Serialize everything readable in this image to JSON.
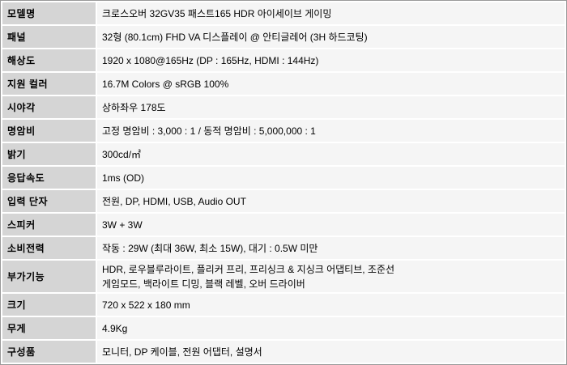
{
  "colors": {
    "label_cell_bg": "#d5d5d5",
    "value_cell_bg": "#f5f5f5",
    "table_border": "#999999",
    "cell_gap": "#ffffff",
    "text": "#000000"
  },
  "spec_table": {
    "rows": [
      {
        "label": "모델명",
        "value": "크로스오버 32GV35 패스트165 HDR 아이세이브 게이밍"
      },
      {
        "label": "패널",
        "value": "32형 (80.1cm) FHD VA 디스플레이 @ 안티글레어 (3H 하드코팅)"
      },
      {
        "label": "해상도",
        "value": "1920 x 1080@165Hz (DP : 165Hz, HDMI : 144Hz)"
      },
      {
        "label": "지원 컬러",
        "value": "16.7M Colors @ sRGB 100%"
      },
      {
        "label": "시야각",
        "value": "상하좌우 178도"
      },
      {
        "label": "명암비",
        "value": "고정 명암비 : 3,000 : 1 / 동적 명암비 : 5,000,000 : 1"
      },
      {
        "label": "밝기",
        "value": "300cd/㎡"
      },
      {
        "label": "응답속도",
        "value": "1ms (OD)"
      },
      {
        "label": "입력 단자",
        "value": "전원, DP, HDMI, USB, Audio OUT"
      },
      {
        "label": "스피커",
        "value": "3W + 3W"
      },
      {
        "label": "소비전력",
        "value": "작동 : 29W (최대 36W, 최소 15W), 대기 : 0.5W 미만"
      },
      {
        "label": "부가기능",
        "lines": [
          "HDR, 로우블루라이트, 플리커 프리, 프리싱크 & 지싱크 어댑티브, 조준선",
          "게임모드, 백라이트 디밍, 블랙 레벨, 오버 드라이버"
        ]
      },
      {
        "label": "크기",
        "value": "720 x 522 x 180 mm"
      },
      {
        "label": "무게",
        "value": "4.9Kg"
      },
      {
        "label": "구성품",
        "value": "모니터, DP 케이블, 전원 어댑터, 설명서"
      }
    ]
  }
}
